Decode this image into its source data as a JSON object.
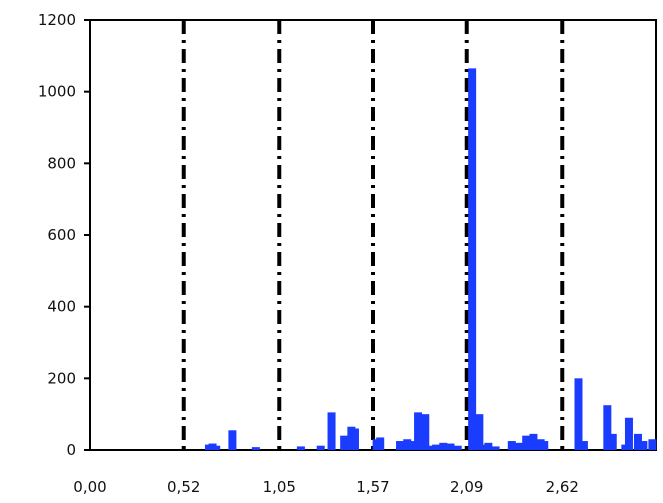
{
  "chart_data": {
    "type": "bar",
    "title": "",
    "xlabel": "",
    "ylabel": "",
    "xlim": [
      0.0,
      3.14
    ],
    "ylim": [
      0,
      1200
    ],
    "xticks": [
      0.0,
      0.52,
      1.05,
      1.57,
      2.09,
      2.62
    ],
    "xtick_labels": [
      "0,00",
      "0,52",
      "1,05",
      "1,57",
      "2,09",
      "2,62"
    ],
    "yticks": [
      0,
      200,
      400,
      600,
      800,
      1000,
      1200
    ],
    "ytick_labels": [
      "0",
      "200",
      "400",
      "600",
      "800",
      "1000",
      "1200"
    ],
    "vertical_lines": [
      0.52,
      1.05,
      1.57,
      2.09,
      2.62
    ],
    "vertical_line_style": "dash-dot",
    "grid": false,
    "legend": "none",
    "bar_color": "#1a3cff",
    "series": [
      {
        "x": [
          0.66,
          0.68,
          0.7,
          0.79,
          0.92,
          1.17,
          1.28,
          1.34,
          1.41,
          1.45,
          1.47,
          1.59,
          1.61,
          1.72,
          1.74,
          1.76,
          1.8,
          1.82,
          1.86,
          1.88,
          1.92,
          1.96,
          2.0,
          2.04,
          2.12,
          2.16,
          2.18,
          2.21,
          2.25,
          2.34,
          2.38,
          2.42,
          2.46,
          2.5,
          2.52,
          2.71,
          2.74,
          2.87,
          2.9,
          2.97,
          2.99,
          3.04,
          3.07,
          3.12
        ],
        "values": [
          15,
          18,
          12,
          55,
          8,
          10,
          12,
          105,
          40,
          65,
          60,
          30,
          35,
          25,
          20,
          30,
          25,
          105,
          100,
          12,
          15,
          20,
          18,
          12,
          1065,
          100,
          15,
          20,
          10,
          25,
          20,
          40,
          45,
          30,
          25,
          200,
          25,
          125,
          45,
          15,
          90,
          45,
          25,
          30
        ]
      }
    ]
  }
}
